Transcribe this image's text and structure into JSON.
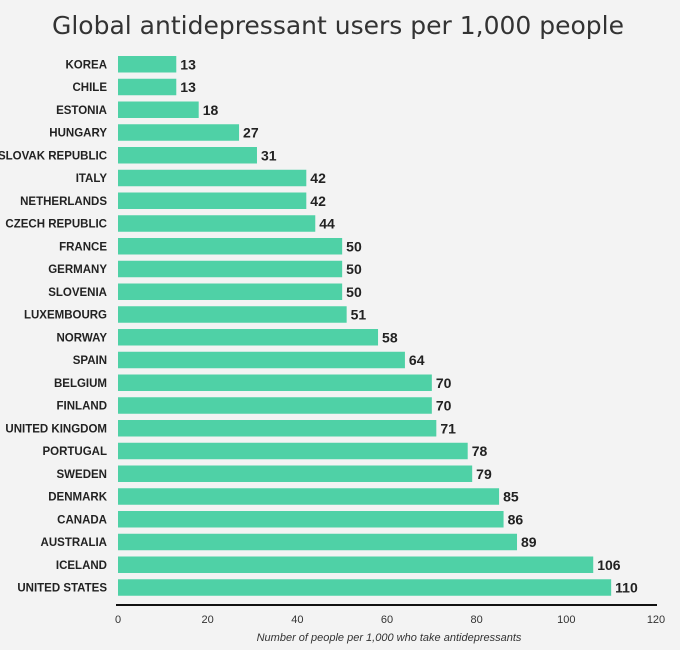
{
  "chart_data": {
    "type": "bar",
    "orientation": "horizontal",
    "title": "Global antidepressant users per 1,000 people",
    "xlabel": "Number of people per 1,000 who take antidepressants",
    "ylabel": "",
    "xlim": [
      0,
      120
    ],
    "xticks": [
      0,
      20,
      40,
      60,
      80,
      100,
      120
    ],
    "grid": false,
    "bar_color": "#4fd1a6",
    "categories": [
      "KOREA",
      "CHILE",
      "ESTONIA",
      "HUNGARY",
      "SLOVAK REPUBLIC",
      "ITALY",
      "NETHERLANDS",
      "CZECH REPUBLIC",
      "FRANCE",
      "GERMANY",
      "SLOVENIA",
      "LUXEMBOURG",
      "NORWAY",
      "SPAIN",
      "BELGIUM",
      "FINLAND",
      "UNITED KINGDOM",
      "PORTUGAL",
      "SWEDEN",
      "DENMARK",
      "CANADA",
      "AUSTRALIA",
      "ICELAND",
      "UNITED STATES"
    ],
    "values": [
      13,
      13,
      18,
      27,
      31,
      42,
      42,
      44,
      50,
      50,
      50,
      51,
      58,
      64,
      70,
      70,
      71,
      78,
      79,
      85,
      86,
      89,
      106,
      110
    ]
  }
}
